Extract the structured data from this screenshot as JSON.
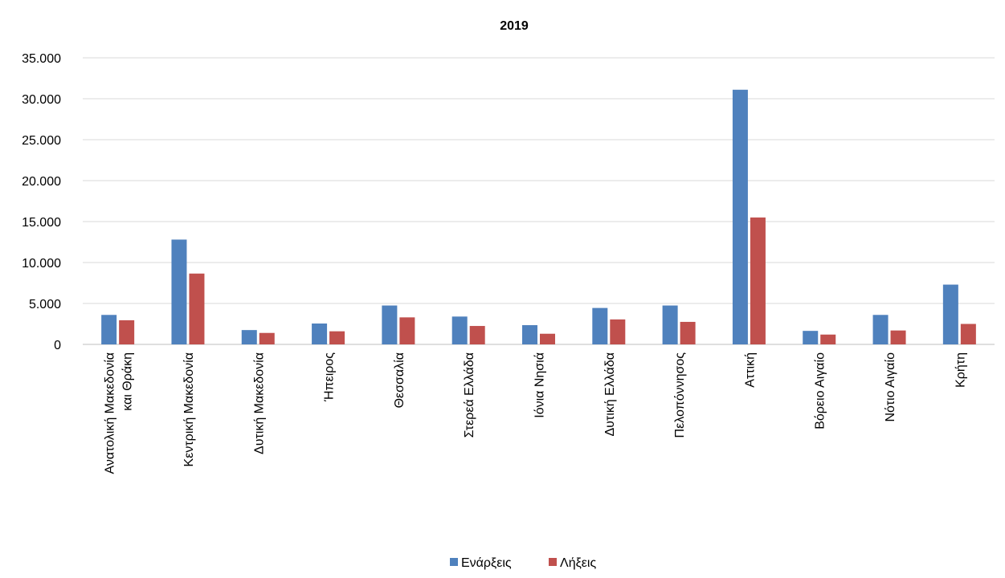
{
  "chart_data": {
    "type": "bar",
    "title": "2019",
    "xlabel": "",
    "ylabel": "",
    "ylim": [
      0,
      35000
    ],
    "y_ticks": [
      0,
      5000,
      10000,
      15000,
      20000,
      25000,
      30000,
      35000
    ],
    "y_tick_labels": [
      "0",
      "5.000",
      "10.000",
      "15.000",
      "20.000",
      "25.000",
      "30.000",
      "35.000"
    ],
    "grid": true,
    "legend_position": "bottom",
    "categories": [
      [
        "Ανατολική Μακεδονία",
        "και Θράκη"
      ],
      [
        "Κεντρική Μακεδονία"
      ],
      [
        "Δυτική Μακεδονία"
      ],
      [
        "Ήπειρος"
      ],
      [
        "Θεσσαλία"
      ],
      [
        "Στερεά Ελλάδα"
      ],
      [
        "Ιόνια Νησιά"
      ],
      [
        "Δυτική Ελλάδα"
      ],
      [
        "Πελοπόννησος"
      ],
      [
        "Αττική"
      ],
      [
        "Βόρειο Αιγαίο"
      ],
      [
        "Νότιο Αιγαίο"
      ],
      [
        "Κρήτη"
      ]
    ],
    "series": [
      {
        "name": "Ενάρξεις",
        "color": "#4F81BD",
        "values": [
          3600,
          12800,
          1750,
          2550,
          4750,
          3400,
          2350,
          4450,
          4750,
          31100,
          1650,
          3600,
          7300
        ]
      },
      {
        "name": "Λήξεις",
        "color": "#C0504D",
        "values": [
          2950,
          8650,
          1400,
          1600,
          3300,
          2250,
          1300,
          3050,
          2750,
          15500,
          1200,
          1700,
          2500
        ]
      }
    ]
  }
}
